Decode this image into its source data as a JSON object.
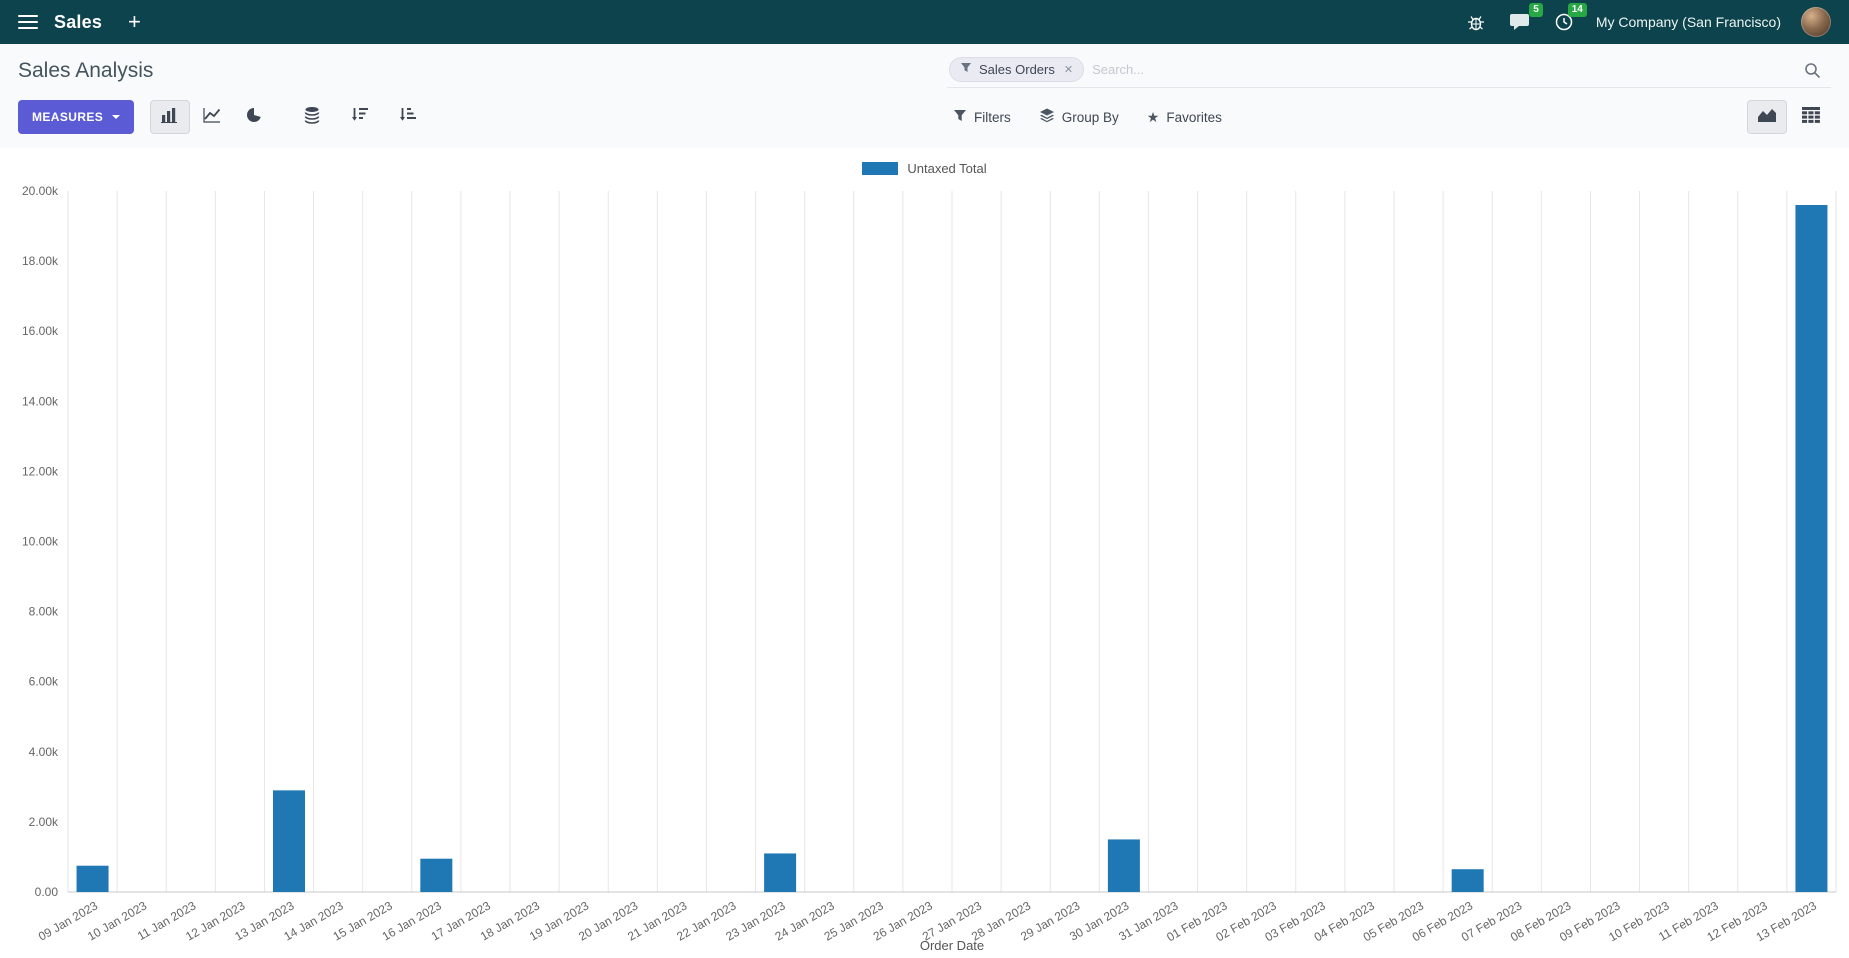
{
  "navbar": {
    "app_name": "Sales",
    "new_tab": "+",
    "messages_badge": "5",
    "activities_badge": "14",
    "company": "My Company (San Francisco)"
  },
  "control_panel": {
    "title": "Sales Analysis",
    "search": {
      "facet_label": "Sales Orders",
      "placeholder": "Search...",
      "remove": "✕"
    },
    "measures_label": "MEASURES",
    "filters_label": "Filters",
    "group_by_label": "Group By",
    "favorites_label": "Favorites"
  },
  "icons": {
    "star": "★"
  },
  "colors": {
    "navbar_bg": "#0d434c",
    "primary_button": "#5b5bd6",
    "badge_green": "#28a745",
    "bar_blue": "#1f77b4"
  },
  "chart_data": {
    "type": "bar",
    "title": "",
    "xlabel": "Order Date",
    "ylabel": "",
    "ylim": [
      0,
      20000
    ],
    "ytick_labels": [
      "0.00",
      "2.00k",
      "4.00k",
      "6.00k",
      "8.00k",
      "10.00k",
      "12.00k",
      "14.00k",
      "16.00k",
      "18.00k",
      "20.00k"
    ],
    "legend_position": "top",
    "grid": "vertical",
    "categories": [
      "09 Jan 2023",
      "10 Jan 2023",
      "11 Jan 2023",
      "12 Jan 2023",
      "13 Jan 2023",
      "14 Jan 2023",
      "15 Jan 2023",
      "16 Jan 2023",
      "17 Jan 2023",
      "18 Jan 2023",
      "19 Jan 2023",
      "20 Jan 2023",
      "21 Jan 2023",
      "22 Jan 2023",
      "23 Jan 2023",
      "24 Jan 2023",
      "25 Jan 2023",
      "26 Jan 2023",
      "27 Jan 2023",
      "28 Jan 2023",
      "29 Jan 2023",
      "30 Jan 2023",
      "31 Jan 2023",
      "01 Feb 2023",
      "02 Feb 2023",
      "03 Feb 2023",
      "04 Feb 2023",
      "05 Feb 2023",
      "06 Feb 2023",
      "07 Feb 2023",
      "08 Feb 2023",
      "09 Feb 2023",
      "10 Feb 2023",
      "11 Feb 2023",
      "12 Feb 2023",
      "13 Feb 2023"
    ],
    "series": [
      {
        "name": "Untaxed Total",
        "color": "#1f77b4",
        "values": [
          750,
          0,
          0,
          0,
          2900,
          0,
          0,
          950,
          0,
          0,
          0,
          0,
          0,
          0,
          1100,
          0,
          0,
          0,
          0,
          0,
          0,
          1500,
          0,
          0,
          0,
          0,
          0,
          0,
          650,
          0,
          0,
          0,
          0,
          0,
          0,
          19600
        ]
      }
    ]
  }
}
